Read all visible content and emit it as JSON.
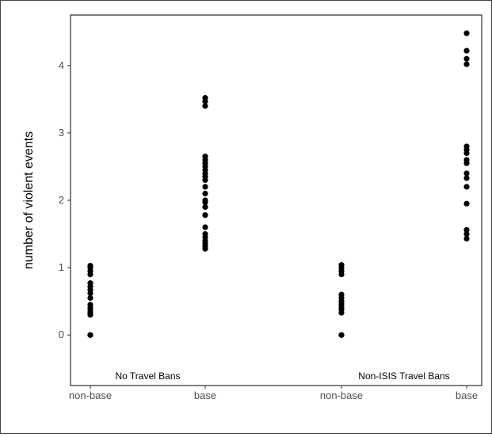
{
  "chart_data": {
    "type": "scatter",
    "title": "",
    "xlabel": "",
    "ylabel": "number of violent events",
    "ylim": [
      -0.75,
      4.75
    ],
    "yticks": [
      0,
      1,
      2,
      3,
      4
    ],
    "grid": false,
    "legend": "none",
    "point_color": "#000000",
    "panels": [
      {
        "label": "No Travel Bans",
        "categories": [
          "non-base",
          "base"
        ],
        "points": [
          {
            "x": "non-base",
            "y": [
              0,
              0,
              0.3,
              0.33,
              0.36,
              0.4,
              0.45,
              0.55,
              0.62,
              0.67,
              0.72,
              0.77,
              0.9,
              0.95,
              1.0,
              1.03
            ]
          },
          {
            "x": "base",
            "y": [
              1.28,
              1.32,
              1.36,
              1.4,
              1.45,
              1.5,
              1.6,
              1.78,
              1.9,
              1.97,
              2.0,
              2.1,
              2.2,
              2.3,
              2.35,
              2.4,
              2.45,
              2.5,
              2.55,
              2.6,
              2.65,
              3.4,
              3.47,
              3.52
            ]
          }
        ]
      },
      {
        "label": "Non-ISIS Travel Bans",
        "categories": [
          "non-base",
          "base"
        ],
        "points": [
          {
            "x": "non-base",
            "y": [
              0,
              0,
              0.33,
              0.38,
              0.42,
              0.46,
              0.5,
              0.55,
              0.6,
              0.9,
              0.95,
              1.0,
              1.04
            ]
          },
          {
            "x": "base",
            "y": [
              1.43,
              1.5,
              1.56,
              1.95,
              2.2,
              2.33,
              2.4,
              2.55,
              2.6,
              2.7,
              2.75,
              2.8,
              4.02,
              4.1,
              4.22,
              4.48
            ]
          }
        ]
      }
    ],
    "x_tick_labels": [
      "non-base",
      "base",
      "non-base",
      "base"
    ]
  }
}
